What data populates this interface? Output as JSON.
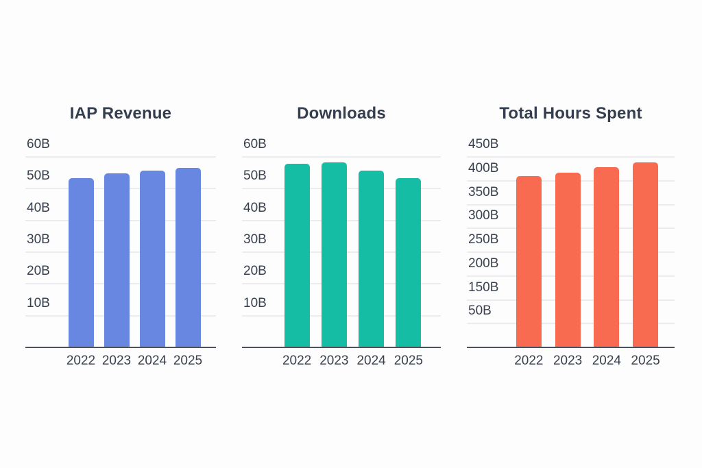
{
  "page": {
    "background_color": "#fdfdfd",
    "text_color": "#39414f",
    "axis_color": "#4a505c",
    "grid_color": "#ececee"
  },
  "chart_data": [
    {
      "type": "bar",
      "title": "IAP Revenue",
      "categories": [
        "2022",
        "2023",
        "2024",
        "2025"
      ],
      "values": [
        50,
        51.5,
        52.5,
        53.3
      ],
      "unit": "B",
      "yticks": [
        "60B",
        "50B",
        "40B",
        "30B",
        "20B",
        "10B"
      ],
      "ymax": 60,
      "ylim": [
        0,
        60
      ],
      "bar_color": "#6787e1",
      "grid": true,
      "legend": "none",
      "xlabel": "",
      "ylabel": ""
    },
    {
      "type": "bar",
      "title": "Downloads",
      "categories": [
        "2022",
        "2023",
        "2024",
        "2025"
      ],
      "values": [
        54.5,
        55,
        52.5,
        50
      ],
      "unit": "B",
      "yticks": [
        "60B",
        "50B",
        "40B",
        "30B",
        "20B",
        "10B"
      ],
      "ymax": 60,
      "ylim": [
        0,
        60
      ],
      "bar_color": "#14bda3",
      "grid": true,
      "legend": "none",
      "xlabel": "",
      "ylabel": ""
    },
    {
      "type": "bar",
      "title": "Total Hours Spent",
      "categories": [
        "2022",
        "2023",
        "2024",
        "2025"
      ],
      "values": [
        381,
        388,
        402,
        413
      ],
      "unit": "B",
      "yticks": [
        "450B",
        "400B",
        "350B",
        "300B",
        "250B",
        "200B",
        "150B",
        "50B"
      ],
      "ymax": 450,
      "ylim": [
        0,
        450
      ],
      "bar_color": "#f96b51",
      "grid": true,
      "legend": "none",
      "xlabel": "",
      "ylabel": ""
    }
  ]
}
